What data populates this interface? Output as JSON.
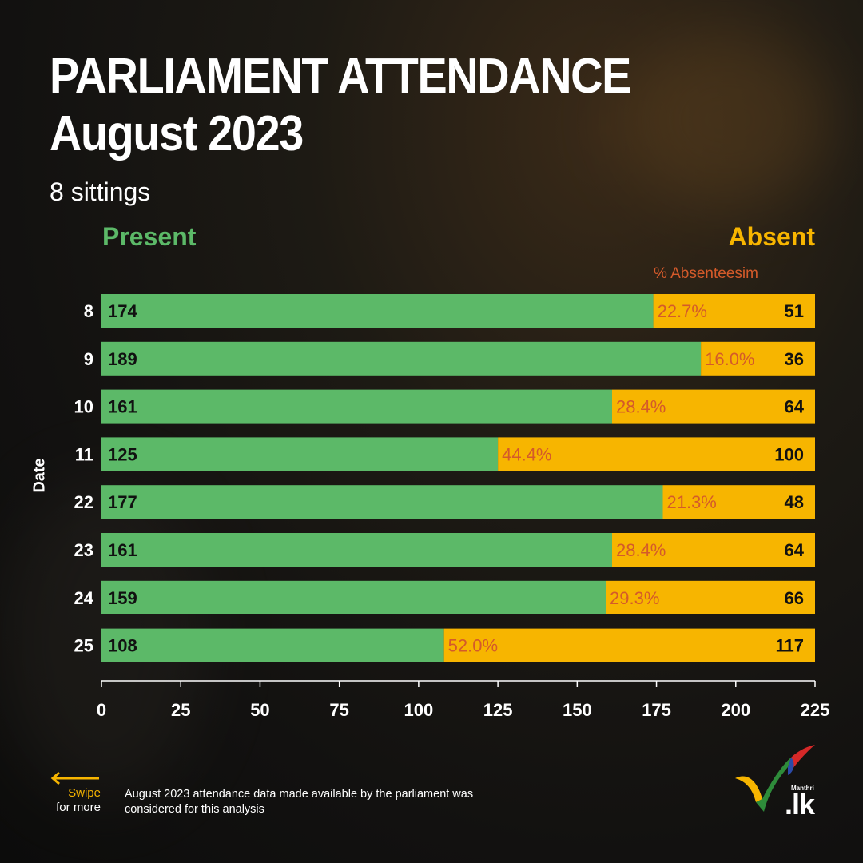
{
  "header": {
    "title_line1": "PARLIAMENT ATTENDANCE",
    "title_line2": "August 2023",
    "subtitle": "8 sittings"
  },
  "legend": {
    "present": "Present",
    "absent": "Absent",
    "absenteeism": "% Absenteesim"
  },
  "footer": {
    "swipe_line1": "Swipe",
    "swipe_line2": "for more",
    "note": "August 2023 attendance data made available by the parliament was considered for this analysis"
  },
  "logo": {
    "small_text": "Manthri",
    "main_text": ".lk"
  },
  "colors": {
    "present": "#5cb968",
    "absent": "#f7b500",
    "percent": "#d45a2a",
    "bar_text": "#111111"
  },
  "chart_data": {
    "type": "bar",
    "orientation": "horizontal",
    "stacked": true,
    "ylabel": "Date",
    "categories": [
      "8",
      "9",
      "10",
      "11",
      "22",
      "23",
      "24",
      "25"
    ],
    "series": [
      {
        "name": "Present",
        "values": [
          174,
          189,
          161,
          125,
          177,
          161,
          159,
          108
        ]
      },
      {
        "name": "Absent",
        "values": [
          51,
          36,
          64,
          100,
          48,
          64,
          66,
          117
        ]
      }
    ],
    "percent_labels": [
      "22.7%",
      "16.0%",
      "28.4%",
      "44.4%",
      "21.3%",
      "28.4%",
      "29.3%",
      "52.0%"
    ],
    "xlim": [
      0,
      225
    ],
    "xticks": [
      0,
      25,
      50,
      75,
      100,
      125,
      150,
      175,
      200,
      225
    ],
    "grid": false
  }
}
